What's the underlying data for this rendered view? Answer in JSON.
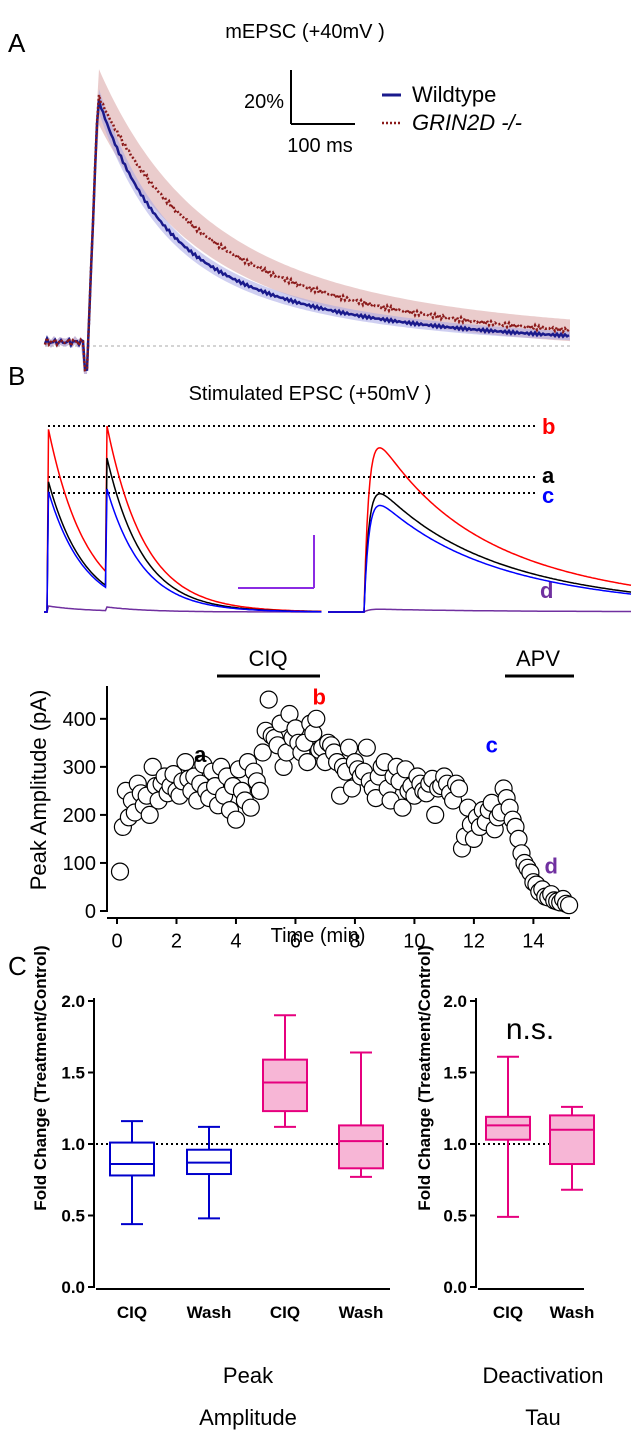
{
  "panels": {
    "A": {
      "letter": "A",
      "title": "mEPSC (+40mV )",
      "scalebar": {
        "y_label": "20%",
        "x_label": "100 ms"
      },
      "legend": [
        {
          "name": "Wildtype",
          "color": "#1a1a8c",
          "style": "solid"
        },
        {
          "name": "GRIN2D -/-",
          "color": "#8b1a1a",
          "style": "dotted"
        }
      ]
    },
    "B": {
      "letter": "B",
      "title": "Stimulated EPSC (+50mV )",
      "trace_labels": [
        {
          "text": "b",
          "color": "#ff0000"
        },
        {
          "text": "a",
          "color": "#000000"
        },
        {
          "text": "c",
          "color": "#0000ff"
        },
        {
          "text": "d",
          "color": "#7030a0"
        }
      ],
      "bars": [
        {
          "label": "CIQ"
        },
        {
          "label": "APV"
        }
      ]
    },
    "C": {
      "letter": "C",
      "annotation": "n.s."
    }
  },
  "chart_data": [
    {
      "type": "scatter",
      "xlabel": "Time (min)",
      "ylabel": "Peak Amplitude (pA)",
      "xlim": [
        0,
        15.5
      ],
      "ylim": [
        0,
        460
      ],
      "xticks": [
        0,
        2,
        4,
        6,
        8,
        10,
        12,
        14
      ],
      "yticks": [
        0,
        100,
        200,
        300,
        400
      ],
      "point_labels": [
        {
          "text": "a",
          "x": 2.8,
          "y": 310,
          "color": "#000000"
        },
        {
          "text": "b",
          "x": 6.8,
          "y": 430,
          "color": "#ff0000"
        },
        {
          "text": "c",
          "x": 12.6,
          "y": 330,
          "color": "#0000ff"
        },
        {
          "text": "d",
          "x": 14.6,
          "y": 78,
          "color": "#7030a0"
        }
      ],
      "x": [
        0.1,
        0.2,
        0.3,
        0.4,
        0.5,
        0.6,
        0.7,
        0.8,
        0.9,
        1.0,
        1.1,
        1.2,
        1.3,
        1.4,
        1.5,
        1.6,
        1.7,
        1.8,
        1.9,
        2.0,
        2.1,
        2.2,
        2.3,
        2.4,
        2.5,
        2.6,
        2.7,
        2.8,
        2.9,
        3.0,
        3.1,
        3.2,
        3.3,
        3.4,
        3.5,
        3.6,
        3.7,
        3.8,
        3.9,
        4.0,
        4.1,
        4.2,
        4.3,
        4.4,
        4.5,
        4.6,
        4.7,
        4.8,
        4.9,
        5.0,
        5.1,
        5.2,
        5.3,
        5.4,
        5.5,
        5.6,
        5.7,
        5.8,
        5.9,
        6.0,
        6.1,
        6.2,
        6.3,
        6.4,
        6.5,
        6.6,
        6.7,
        6.8,
        6.9,
        7.0,
        7.1,
        7.2,
        7.3,
        7.4,
        7.5,
        7.6,
        7.7,
        7.8,
        7.9,
        8.0,
        8.1,
        8.2,
        8.3,
        8.4,
        8.5,
        8.6,
        8.7,
        8.8,
        8.9,
        9.0,
        9.1,
        9.2,
        9.3,
        9.4,
        9.5,
        9.6,
        9.7,
        9.8,
        9.9,
        10.0,
        10.1,
        10.2,
        10.3,
        10.4,
        10.5,
        10.6,
        10.7,
        10.8,
        10.9,
        11.0,
        11.1,
        11.2,
        11.3,
        11.4,
        11.5,
        11.6,
        11.7,
        11.8,
        11.9,
        12.0,
        12.1,
        12.2,
        12.3,
        12.4,
        12.5,
        12.6,
        12.7,
        12.8,
        12.9,
        13.0,
        13.1,
        13.2,
        13.3,
        13.4,
        13.5,
        13.6,
        13.7,
        13.8,
        13.9,
        14.0,
        14.1,
        14.2,
        14.3,
        14.4,
        14.5,
        14.6,
        14.7,
        14.8,
        14.9,
        15.0,
        15.1,
        15.2
      ],
      "values": [
        82,
        175,
        250,
        195,
        230,
        205,
        265,
        245,
        220,
        240,
        200,
        300,
        260,
        230,
        265,
        280,
        245,
        260,
        285,
        250,
        240,
        270,
        310,
        275,
        250,
        280,
        230,
        265,
        305,
        250,
        235,
        290,
        260,
        220,
        300,
        240,
        280,
        210,
        260,
        190,
        295,
        250,
        230,
        310,
        215,
        290,
        270,
        250,
        330,
        375,
        440,
        365,
        360,
        345,
        390,
        300,
        330,
        410,
        360,
        380,
        350,
        330,
        350,
        310,
        390,
        370,
        400,
        335,
        340,
        310,
        350,
        345,
        330,
        310,
        240,
        300,
        290,
        340,
        255,
        310,
        295,
        280,
        290,
        340,
        270,
        255,
        235,
        280,
        300,
        310,
        255,
        230,
        280,
        300,
        270,
        215,
        295,
        250,
        260,
        240,
        280,
        265,
        250,
        245,
        265,
        275,
        200,
        255,
        260,
        280,
        265,
        245,
        230,
        265,
        255,
        130,
        155,
        215,
        180,
        150,
        195,
        175,
        210,
        185,
        210,
        225,
        170,
        195,
        205,
        255,
        235,
        215,
        190,
        175,
        150,
        120,
        100,
        90,
        80,
        60,
        55,
        40,
        45,
        30,
        28,
        35,
        22,
        20,
        18,
        25,
        15,
        12
      ],
      "marker": "open-circle"
    },
    {
      "type": "box",
      "ylabel": "Fold Change (Treatment/Control)",
      "ylim": [
        0,
        2.0
      ],
      "yticks": [
        "0.0",
        "0.5",
        "1.0",
        "1.5",
        "2.0"
      ],
      "reference_line": 1.0,
      "categories": [
        "CIQ",
        "Wash",
        "CIQ",
        "Wash"
      ],
      "group_label": "Peak Amplitude",
      "boxes": [
        {
          "min": 0.44,
          "q1": 0.78,
          "median": 0.86,
          "q3": 1.01,
          "max": 1.16,
          "color": "#0000cc",
          "filled": false
        },
        {
          "min": 0.48,
          "q1": 0.79,
          "median": 0.87,
          "q3": 0.96,
          "max": 1.12,
          "color": "#0000cc",
          "filled": false
        },
        {
          "min": 1.12,
          "q1": 1.23,
          "median": 1.43,
          "q3": 1.59,
          "max": 1.9,
          "color": "#e6007e",
          "filled": true
        },
        {
          "min": 0.77,
          "q1": 0.83,
          "median": 1.02,
          "q3": 1.13,
          "max": 1.64,
          "color": "#e6007e",
          "filled": true
        }
      ]
    },
    {
      "type": "box",
      "ylabel": "Fold Change (Treatment/Control)",
      "ylim": [
        0,
        2.0
      ],
      "yticks": [
        "0.0",
        "0.5",
        "1.0",
        "1.5",
        "2.0"
      ],
      "reference_line": 1.0,
      "categories": [
        "CIQ",
        "Wash"
      ],
      "group_label": "Deactivation Tau",
      "boxes": [
        {
          "min": 0.49,
          "q1": 1.03,
          "median": 1.13,
          "q3": 1.19,
          "max": 1.61,
          "color": "#e6007e",
          "filled": true
        },
        {
          "min": 0.68,
          "q1": 0.86,
          "median": 1.1,
          "q3": 1.2,
          "max": 1.26,
          "color": "#e6007e",
          "filled": true
        }
      ]
    }
  ]
}
